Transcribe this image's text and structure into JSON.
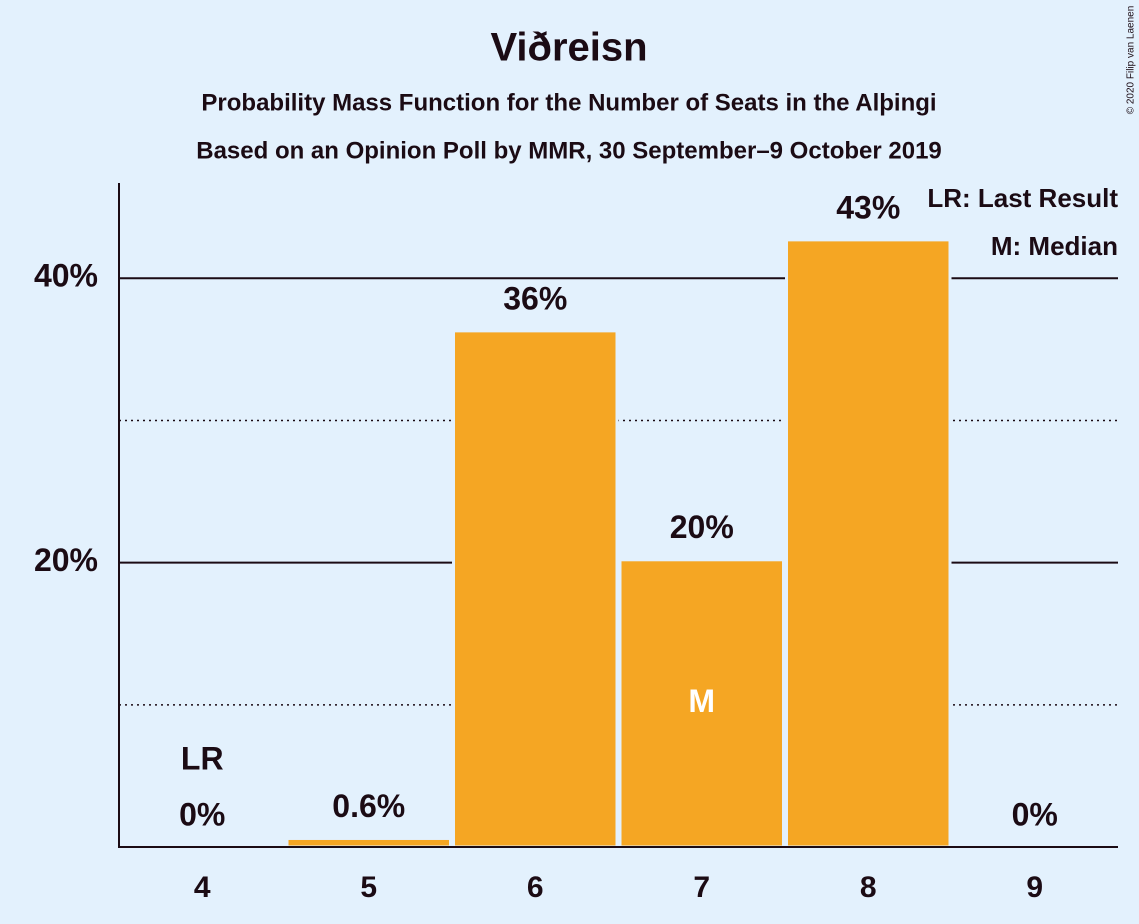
{
  "chart_data": {
    "type": "bar",
    "title": "Viðreisn",
    "subtitle": [
      "Probability Mass Function for the Number of Seats in the Alþingi",
      "Based on an Opinion Poll by MMR, 30 September–9 October 2019"
    ],
    "categories": [
      "4",
      "5",
      "6",
      "7",
      "8",
      "9"
    ],
    "values": [
      0,
      0.6,
      36.3,
      20.2,
      42.7,
      0
    ],
    "value_labels": [
      "0%",
      "0.6%",
      "36%",
      "20%",
      "43%",
      "0%"
    ],
    "color": "#f5a623",
    "ylim": [
      0,
      46.7
    ],
    "yticks": [
      {
        "value": 20,
        "label": "20%"
      },
      {
        "value": 40,
        "label": "40%"
      }
    ],
    "minor_yticks": [
      10,
      30
    ],
    "grid": true,
    "annotations": [
      {
        "text": "LR",
        "category": "4",
        "position": "above"
      },
      {
        "text": "M",
        "category": "7",
        "position": "inside"
      }
    ],
    "legend": [
      "LR: Last Result",
      "M: Median"
    ],
    "legend_position": "upper right",
    "copyright": "© 2020 Filip van Laenen"
  }
}
